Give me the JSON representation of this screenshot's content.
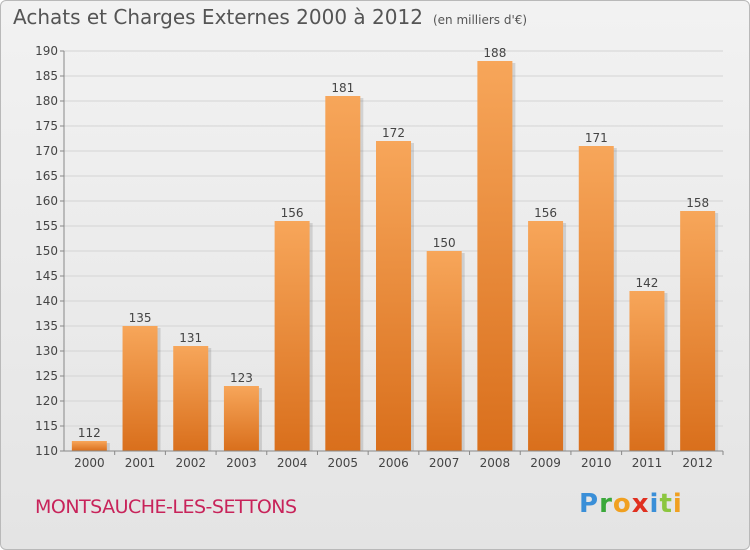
{
  "header": {
    "title": "Achats et Charges Externes 2000 à 2012",
    "unit": "(en milliers d'€)"
  },
  "footer": {
    "commune": "MONTSAUCHE-LES-SETTONS",
    "brand": "Proxiti",
    "brand_letters": [
      {
        "ch": "P",
        "color": "#3a8fd8"
      },
      {
        "ch": "r",
        "color": "#3aa83a"
      },
      {
        "ch": "o",
        "color": "#f0a020"
      },
      {
        "ch": "x",
        "color": "#e03020"
      },
      {
        "ch": "i",
        "color": "#3a8fd8"
      },
      {
        "ch": "t",
        "color": "#8cc63f"
      },
      {
        "ch": "i",
        "color": "#f0a020"
      }
    ]
  },
  "colors": {
    "bar_light": "#f7a65a",
    "bar_dark": "#d96f1c",
    "grid": "#d4d4d4",
    "axis": "#888888",
    "text": "#444444"
  },
  "chart_data": {
    "type": "bar",
    "title": "Achats et Charges Externes 2000 à 2012",
    "subtitle": "(en milliers d'€)",
    "xlabel": "",
    "ylabel": "",
    "categories": [
      "2000",
      "2001",
      "2002",
      "2003",
      "2004",
      "2005",
      "2006",
      "2007",
      "2008",
      "2009",
      "2010",
      "2011",
      "2012"
    ],
    "values": [
      112,
      135,
      131,
      123,
      156,
      181,
      172,
      150,
      188,
      156,
      171,
      142,
      158
    ],
    "data_labels": [
      "112",
      "135",
      "131",
      "123",
      "156",
      "181",
      "172",
      "150",
      "188",
      "156",
      "171",
      "142",
      "158"
    ],
    "ylim": [
      110,
      190
    ],
    "yticks": [
      110,
      115,
      120,
      125,
      130,
      135,
      140,
      145,
      150,
      155,
      160,
      165,
      170,
      175,
      180,
      185,
      190
    ],
    "grid": true,
    "legend": "none"
  }
}
